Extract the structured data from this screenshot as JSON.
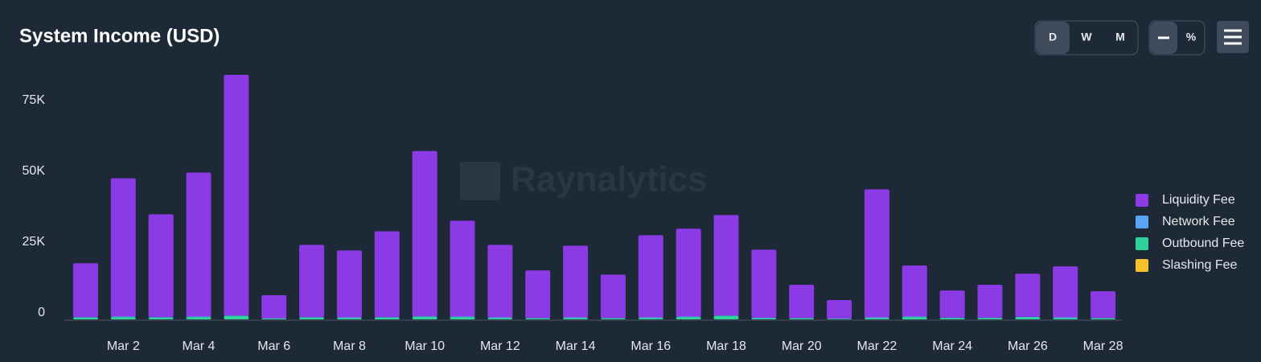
{
  "chart_data": {
    "type": "bar",
    "stacked": true,
    "title": "System Income (USD)",
    "categories": [
      null,
      "Mar 2",
      null,
      "Mar 4",
      null,
      "Mar 6",
      null,
      "Mar 8",
      null,
      "Mar 10",
      null,
      "Mar 12",
      null,
      "Mar 14",
      null,
      "Mar 16",
      null,
      "Mar 18",
      null,
      "Mar 20",
      null,
      "Mar 22",
      null,
      "Mar 24",
      null,
      "Mar 26",
      null,
      "Mar 28"
    ],
    "series": [
      {
        "name": "Liquidity Fee",
        "color": "#8b3ae6",
        "values": [
          19000,
          48800,
          36300,
          50800,
          84900,
          8100,
          25500,
          23600,
          30300,
          58300,
          33800,
          25600,
          16800,
          25300,
          15300,
          29000,
          31000,
          35400,
          24000,
          11700,
          6500,
          45200,
          18000,
          9600,
          11600,
          15200,
          18000,
          9400
        ]
      },
      {
        "name": "Network Fee",
        "color": "#5aa5f5",
        "values": [
          200,
          200,
          200,
          200,
          200,
          100,
          200,
          200,
          200,
          200,
          200,
          200,
          100,
          200,
          100,
          200,
          200,
          200,
          200,
          100,
          100,
          200,
          200,
          100,
          100,
          200,
          200,
          100
        ]
      },
      {
        "name": "Outbound Fee",
        "color": "#2fd39a",
        "values": [
          600,
          800,
          600,
          800,
          1200,
          300,
          600,
          500,
          600,
          900,
          800,
          500,
          400,
          500,
          400,
          500,
          800,
          1200,
          400,
          400,
          200,
          500,
          800,
          500,
          500,
          700,
          500,
          400
        ]
      },
      {
        "name": "Slashing Fee",
        "color": "#f5c02a",
        "values": [
          0,
          0,
          0,
          0,
          0,
          0,
          0,
          0,
          0,
          0,
          0,
          0,
          0,
          0,
          0,
          0,
          0,
          0,
          0,
          0,
          0,
          0,
          0,
          0,
          0,
          0,
          0,
          0
        ]
      }
    ],
    "ylim": [
      0,
      90000
    ],
    "yticks": [
      {
        "value": 0,
        "label": "0"
      },
      {
        "value": 25000,
        "label": "25K"
      },
      {
        "value": 50000,
        "label": "50K"
      },
      {
        "value": 75000,
        "label": "75K"
      }
    ],
    "grid": false,
    "legend": "right"
  },
  "controls": {
    "periods": [
      "D",
      "W",
      "M"
    ],
    "percent": "%"
  },
  "watermark": "Raynalytics"
}
